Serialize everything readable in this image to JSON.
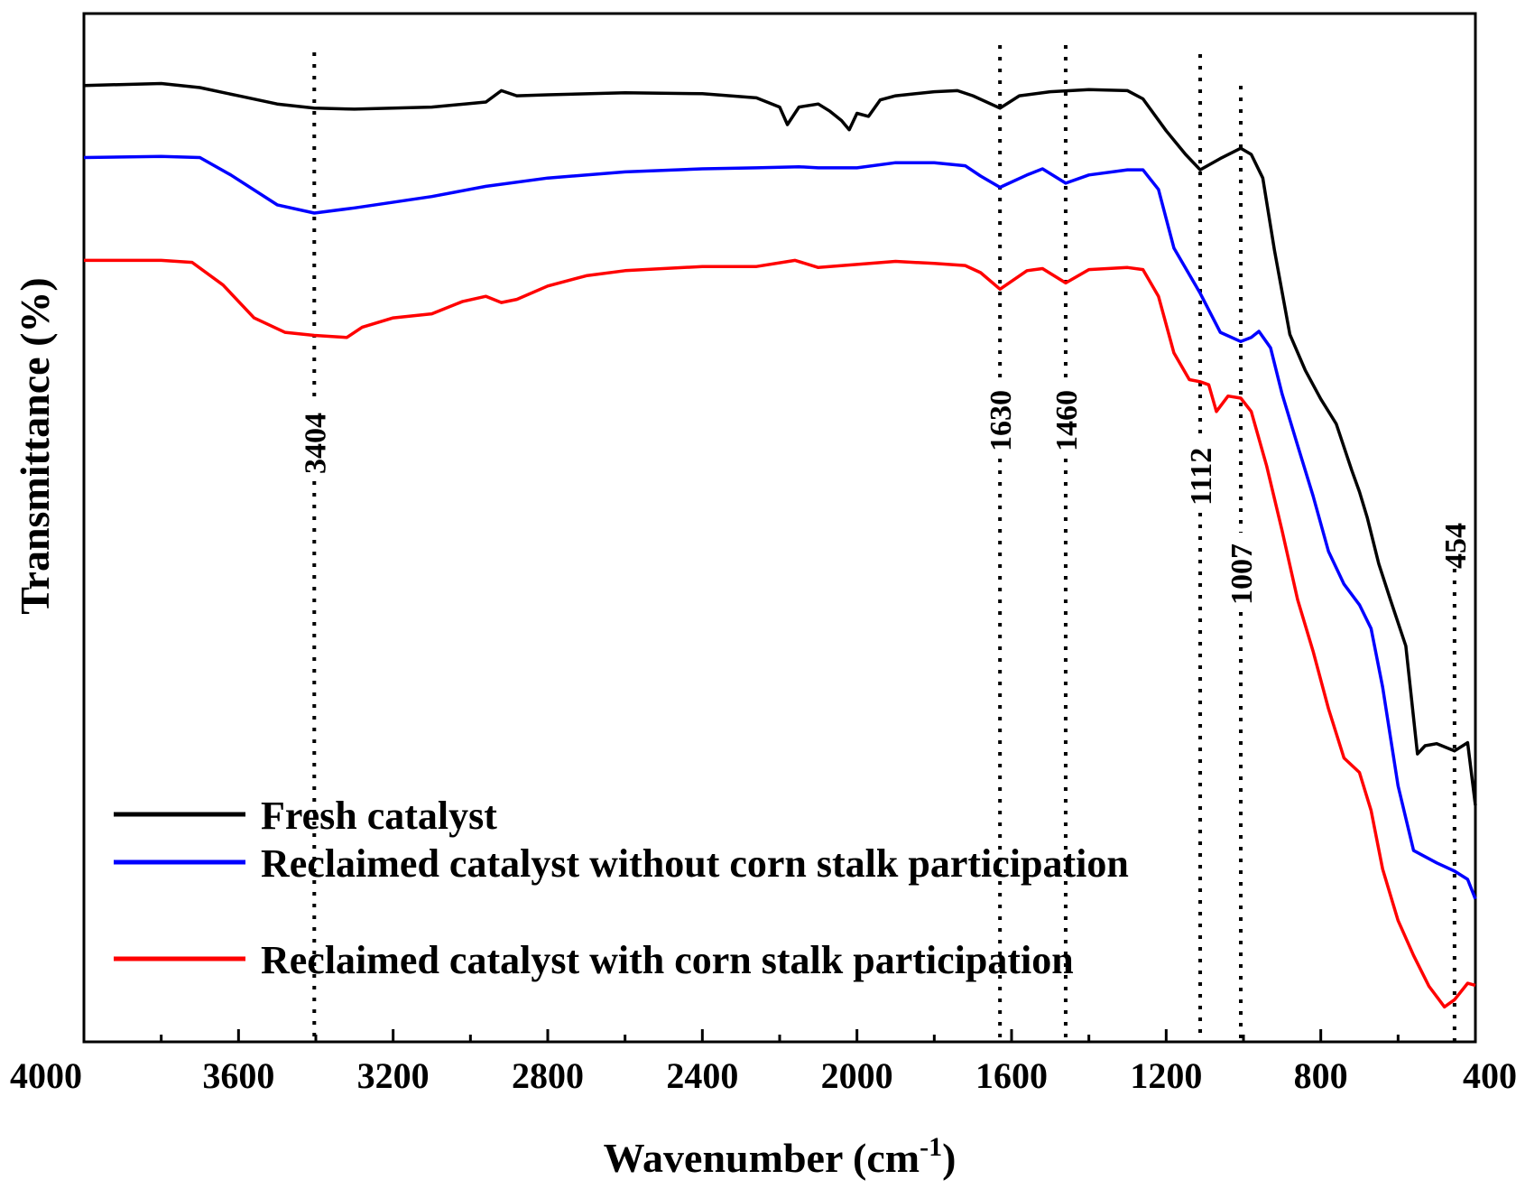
{
  "chart_data": {
    "type": "line",
    "xlabel": "Wavenumber (cm",
    "xlabel_sup": "-1",
    "xlabel_close": ")",
    "ylabel": "Transmittance (%)",
    "xlim": [
      4000,
      400
    ],
    "x_reversed": true,
    "ylim": [
      0,
      100
    ],
    "y_ticks_shown": false,
    "x_ticks": [
      "4000",
      "3600",
      "3200",
      "2800",
      "2400",
      "2000",
      "1600",
      "1200",
      "800",
      "400"
    ],
    "grid": false,
    "legend_position": "bottom-left",
    "series": [
      {
        "name": "Fresh catalyst",
        "color": "#000000",
        "points": [
          [
            4000,
            93
          ],
          [
            3800,
            93.2
          ],
          [
            3700,
            92.8
          ],
          [
            3600,
            92
          ],
          [
            3500,
            91.2
          ],
          [
            3404,
            90.8
          ],
          [
            3300,
            90.7
          ],
          [
            3100,
            90.9
          ],
          [
            2960,
            91.4
          ],
          [
            2920,
            92.5
          ],
          [
            2880,
            92.0
          ],
          [
            2800,
            92.1
          ],
          [
            2600,
            92.3
          ],
          [
            2400,
            92.2
          ],
          [
            2260,
            91.8
          ],
          [
            2200,
            90.9
          ],
          [
            2180,
            89.2
          ],
          [
            2150,
            90.9
          ],
          [
            2100,
            91.2
          ],
          [
            2070,
            90.5
          ],
          [
            2040,
            89.6
          ],
          [
            2020,
            88.7
          ],
          [
            2000,
            90.3
          ],
          [
            1970,
            90.0
          ],
          [
            1940,
            91.6
          ],
          [
            1900,
            92.0
          ],
          [
            1800,
            92.4
          ],
          [
            1740,
            92.5
          ],
          [
            1700,
            92.0
          ],
          [
            1630,
            90.8
          ],
          [
            1580,
            92.0
          ],
          [
            1500,
            92.4
          ],
          [
            1400,
            92.6
          ],
          [
            1300,
            92.5
          ],
          [
            1260,
            91.7
          ],
          [
            1200,
            88.6
          ],
          [
            1150,
            86.3
          ],
          [
            1112,
            84.8
          ],
          [
            1060,
            85.9
          ],
          [
            1007,
            86.9
          ],
          [
            980,
            86.3
          ],
          [
            950,
            84.0
          ],
          [
            920,
            77.0
          ],
          [
            880,
            68.8
          ],
          [
            840,
            65.3
          ],
          [
            800,
            62.5
          ],
          [
            760,
            60.1
          ],
          [
            720,
            55.6
          ],
          [
            700,
            53.5
          ],
          [
            680,
            51.0
          ],
          [
            650,
            46.5
          ],
          [
            620,
            43.0
          ],
          [
            580,
            38.5
          ],
          [
            550,
            28.0
          ],
          [
            530,
            28.8
          ],
          [
            500,
            29.0
          ],
          [
            454,
            28.3
          ],
          [
            420,
            29.1
          ],
          [
            400,
            23.0
          ]
        ]
      },
      {
        "name": "Reclaimed catalyst without corn stalk participation",
        "color": "#0000ff",
        "points": [
          [
            4000,
            86
          ],
          [
            3800,
            86.1
          ],
          [
            3700,
            86.0
          ],
          [
            3620,
            84.3
          ],
          [
            3500,
            81.4
          ],
          [
            3404,
            80.6
          ],
          [
            3300,
            81.1
          ],
          [
            3100,
            82.2
          ],
          [
            2960,
            83.2
          ],
          [
            2800,
            84.0
          ],
          [
            2600,
            84.6
          ],
          [
            2400,
            84.9
          ],
          [
            2260,
            85.0
          ],
          [
            2150,
            85.1
          ],
          [
            2100,
            85.0
          ],
          [
            2000,
            85.0
          ],
          [
            1900,
            85.5
          ],
          [
            1800,
            85.5
          ],
          [
            1720,
            85.2
          ],
          [
            1680,
            84.2
          ],
          [
            1630,
            83.1
          ],
          [
            1560,
            84.3
          ],
          [
            1520,
            84.9
          ],
          [
            1460,
            83.5
          ],
          [
            1400,
            84.3
          ],
          [
            1300,
            84.8
          ],
          [
            1260,
            84.8
          ],
          [
            1220,
            82.9
          ],
          [
            1180,
            77.2
          ],
          [
            1112,
            72.8
          ],
          [
            1060,
            69.0
          ],
          [
            1007,
            68.1
          ],
          [
            980,
            68.5
          ],
          [
            960,
            69.1
          ],
          [
            930,
            67.5
          ],
          [
            900,
            63.0
          ],
          [
            860,
            58.0
          ],
          [
            820,
            53.1
          ],
          [
            780,
            47.7
          ],
          [
            740,
            44.5
          ],
          [
            700,
            42.5
          ],
          [
            670,
            40.2
          ],
          [
            640,
            34.5
          ],
          [
            600,
            24.9
          ],
          [
            560,
            18.6
          ],
          [
            500,
            17.4
          ],
          [
            454,
            16.6
          ],
          [
            420,
            15.8
          ],
          [
            400,
            13.9
          ]
        ]
      },
      {
        "name": "Reclaimed catalyst with corn stalk participation",
        "color": "#ff0000",
        "points": [
          [
            4000,
            76
          ],
          [
            3800,
            76
          ],
          [
            3720,
            75.8
          ],
          [
            3640,
            73.6
          ],
          [
            3560,
            70.4
          ],
          [
            3480,
            69.0
          ],
          [
            3404,
            68.7
          ],
          [
            3320,
            68.5
          ],
          [
            3280,
            69.5
          ],
          [
            3200,
            70.4
          ],
          [
            3100,
            70.8
          ],
          [
            3020,
            72.0
          ],
          [
            2960,
            72.5
          ],
          [
            2920,
            71.9
          ],
          [
            2880,
            72.2
          ],
          [
            2800,
            73.5
          ],
          [
            2700,
            74.5
          ],
          [
            2600,
            75.0
          ],
          [
            2400,
            75.4
          ],
          [
            2260,
            75.4
          ],
          [
            2160,
            76.0
          ],
          [
            2100,
            75.3
          ],
          [
            2000,
            75.6
          ],
          [
            1900,
            75.9
          ],
          [
            1800,
            75.7
          ],
          [
            1720,
            75.5
          ],
          [
            1680,
            74.8
          ],
          [
            1630,
            73.2
          ],
          [
            1560,
            75.0
          ],
          [
            1520,
            75.2
          ],
          [
            1460,
            73.8
          ],
          [
            1400,
            75.1
          ],
          [
            1300,
            75.3
          ],
          [
            1260,
            75.1
          ],
          [
            1220,
            72.5
          ],
          [
            1180,
            67.0
          ],
          [
            1140,
            64.4
          ],
          [
            1112,
            64.2
          ],
          [
            1090,
            63.9
          ],
          [
            1070,
            61.3
          ],
          [
            1040,
            62.8
          ],
          [
            1007,
            62.6
          ],
          [
            980,
            61.3
          ],
          [
            940,
            56.0
          ],
          [
            900,
            49.7
          ],
          [
            860,
            43.0
          ],
          [
            820,
            38.0
          ],
          [
            780,
            32.4
          ],
          [
            740,
            27.6
          ],
          [
            700,
            26.2
          ],
          [
            670,
            22.5
          ],
          [
            640,
            16.8
          ],
          [
            600,
            11.8
          ],
          [
            560,
            8.4
          ],
          [
            520,
            5.4
          ],
          [
            480,
            3.4
          ],
          [
            454,
            4.1
          ],
          [
            420,
            5.7
          ],
          [
            400,
            5.5
          ]
        ]
      }
    ],
    "peak_markers": [
      {
        "x": 3404,
        "label": "3404"
      },
      {
        "x": 1630,
        "label": "1630"
      },
      {
        "x": 1460,
        "label": "1460"
      },
      {
        "x": 1112,
        "label": "1112"
      },
      {
        "x": 1007,
        "label": "1007"
      },
      {
        "x": 454,
        "label": "454"
      }
    ]
  }
}
